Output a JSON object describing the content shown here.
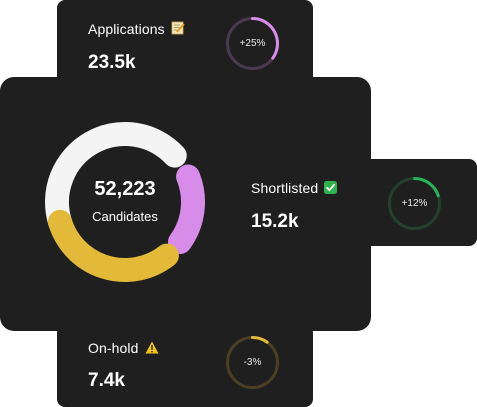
{
  "summary": {
    "total_value": "52,223",
    "total_label": "Candidates",
    "donut_colors": {
      "applications": "#f4f4f4",
      "shortlisted": "#d68ce8",
      "on_hold": "#e3b93a"
    }
  },
  "applications": {
    "label": "Applications",
    "icon": "memo-icon",
    "value": "23.5k",
    "change": "+25%",
    "progress": 0.35,
    "color": "#d68ce8",
    "track": "#4a3a4f"
  },
  "shortlisted": {
    "label": "Shortlisted",
    "icon": "check-mark-button-icon",
    "value": "15.2k",
    "change": "+12%",
    "progress": 0.2,
    "color": "#28b25a",
    "track": "#23402e"
  },
  "on_hold": {
    "label": "On-hold",
    "icon": "warning-icon",
    "value": "7.4k",
    "change": "-3%",
    "progress": 0.1,
    "color": "#e3b93a",
    "track": "#4a3f22"
  }
}
